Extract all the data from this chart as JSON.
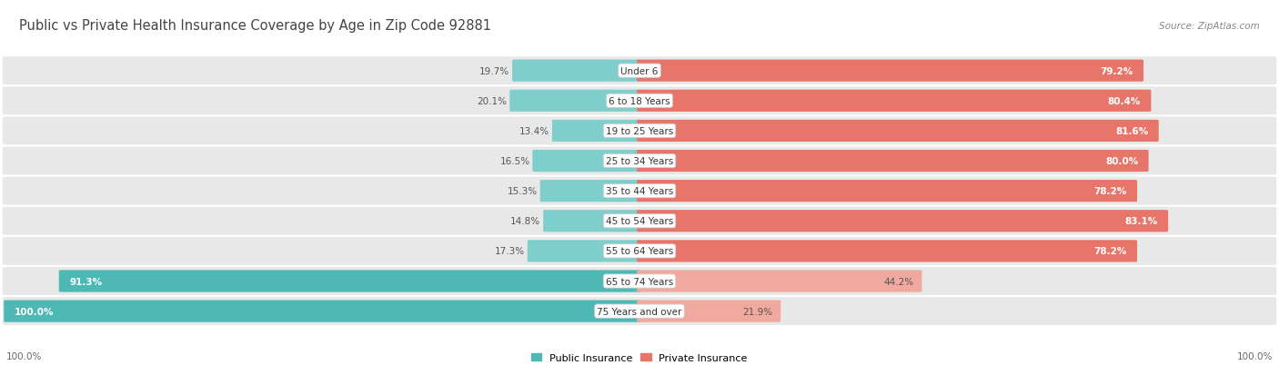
{
  "title": "Public vs Private Health Insurance Coverage by Age in Zip Code 92881",
  "source": "Source: ZipAtlas.com",
  "categories": [
    "Under 6",
    "6 to 18 Years",
    "19 to 25 Years",
    "25 to 34 Years",
    "35 to 44 Years",
    "45 to 54 Years",
    "55 to 64 Years",
    "65 to 74 Years",
    "75 Years and over"
  ],
  "public_values": [
    19.7,
    20.1,
    13.4,
    16.5,
    15.3,
    14.8,
    17.3,
    91.3,
    100.0
  ],
  "private_values": [
    79.2,
    80.4,
    81.6,
    80.0,
    78.2,
    83.1,
    78.2,
    44.2,
    21.9
  ],
  "public_color_strong": "#4DB8B4",
  "public_color_light": "#7ECFCB",
  "private_color_strong": "#E8756A",
  "private_color_light": "#F0A89F",
  "row_bg_color": "#E8E8E8",
  "title_fontsize": 10.5,
  "source_fontsize": 7.5,
  "label_fontsize": 7.5,
  "value_fontsize": 7.5,
  "legend_fontsize": 8,
  "axis_label_fontsize": 7.5,
  "title_color": "#444444",
  "value_text_color_white": "#FFFFFF",
  "value_text_color_dark": "#555555",
  "category_text_color": "#333333",
  "axis_text_color": "#666666",
  "source_color": "#888888"
}
